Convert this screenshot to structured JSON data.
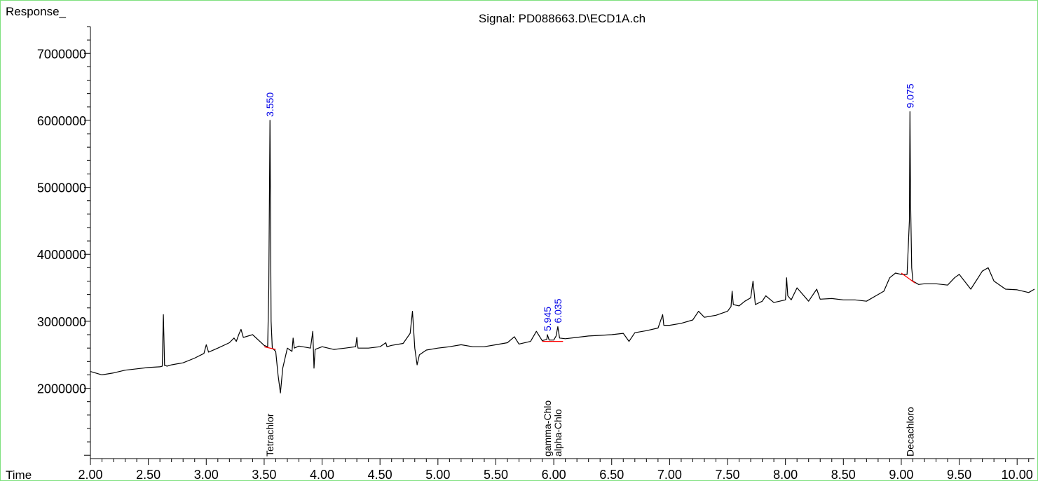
{
  "header": {
    "ylabel": "Response_",
    "title": "Signal: PD088663.D\\ECD1A.ch",
    "xlabel": "Time"
  },
  "colors": {
    "trace": "#000000",
    "baseline": "#ff0000",
    "retention_label": "#0000e6",
    "axis_title": "#0000e6",
    "frame": "#7ee07e"
  },
  "chart_data": {
    "type": "line",
    "title": "Signal: PD088663.D\\ECD1A.ch",
    "xlabel": "Time",
    "ylabel": "Response_",
    "xlim": [
      2.0,
      10.15
    ],
    "ylim": [
      950000,
      7400000
    ],
    "x_ticks": [
      2.0,
      2.5,
      3.0,
      3.5,
      4.0,
      4.5,
      5.0,
      5.5,
      6.0,
      6.5,
      7.0,
      7.5,
      8.0,
      8.5,
      9.0,
      9.5,
      10.0
    ],
    "x_tick_labels": [
      "2.00",
      "2.50",
      "3.00",
      "3.50",
      "4.00",
      "4.50",
      "5.00",
      "5.50",
      "6.00",
      "6.50",
      "7.00",
      "7.50",
      "8.00",
      "8.50",
      "9.00",
      "9.50",
      "10.00"
    ],
    "y_ticks": [
      2000000,
      3000000,
      4000000,
      5000000,
      6000000,
      7000000
    ],
    "y_tick_labels": [
      "2000000",
      "3000000",
      "4000000",
      "5000000",
      "6000000",
      "7000000"
    ],
    "series": [
      {
        "x": [
          2.0,
          2.1,
          2.2,
          2.3,
          2.4,
          2.5,
          2.6,
          2.62,
          2.63,
          2.64,
          2.65,
          2.66,
          2.7,
          2.8,
          2.9,
          2.98,
          3.0,
          3.02,
          3.1,
          3.2,
          3.24,
          3.26,
          3.28,
          3.3,
          3.32,
          3.4,
          3.5,
          3.53,
          3.54,
          3.55,
          3.56,
          3.57,
          3.6,
          3.62,
          3.64,
          3.66,
          3.7,
          3.74,
          3.75,
          3.76,
          3.8,
          3.9,
          3.92,
          3.93,
          3.94,
          4.0,
          4.1,
          4.2,
          4.29,
          4.3,
          4.31,
          4.4,
          4.5,
          4.55,
          4.56,
          4.6,
          4.7,
          4.76,
          4.78,
          4.8,
          4.82,
          4.84,
          4.9,
          5.0,
          5.1,
          5.2,
          5.3,
          5.4,
          5.5,
          5.6,
          5.66,
          5.7,
          5.8,
          5.85,
          5.9,
          5.94,
          5.945,
          5.96,
          6.0,
          6.02,
          6.035,
          6.05,
          6.1,
          6.2,
          6.3,
          6.4,
          6.5,
          6.6,
          6.65,
          6.7,
          6.8,
          6.9,
          6.94,
          6.95,
          7.0,
          7.1,
          7.2,
          7.25,
          7.3,
          7.4,
          7.5,
          7.53,
          7.54,
          7.55,
          7.6,
          7.65,
          7.7,
          7.72,
          7.74,
          7.8,
          7.83,
          7.9,
          7.95,
          8.0,
          8.01,
          8.02,
          8.05,
          8.1,
          8.2,
          8.27,
          8.3,
          8.4,
          8.5,
          8.6,
          8.7,
          8.8,
          8.85,
          8.9,
          8.95,
          9.0,
          9.05,
          9.07,
          9.075,
          9.08,
          9.09,
          9.1,
          9.15,
          9.2,
          9.3,
          9.4,
          9.46,
          9.5,
          9.6,
          9.7,
          9.75,
          9.8,
          9.9,
          10.0,
          10.1,
          10.15
        ],
        "y": [
          2250000,
          2200000,
          2230000,
          2270000,
          2290000,
          2310000,
          2320000,
          2330000,
          3100000,
          2340000,
          2340000,
          2330000,
          2350000,
          2380000,
          2450000,
          2520000,
          2650000,
          2540000,
          2600000,
          2680000,
          2750000,
          2700000,
          2800000,
          2880000,
          2760000,
          2800000,
          2640000,
          2620000,
          3500000,
          6000000,
          3000000,
          2600000,
          2550000,
          2200000,
          1930000,
          2300000,
          2600000,
          2550000,
          2750000,
          2600000,
          2630000,
          2600000,
          2850000,
          2300000,
          2580000,
          2620000,
          2580000,
          2600000,
          2620000,
          2760000,
          2600000,
          2600000,
          2620000,
          2680000,
          2620000,
          2640000,
          2670000,
          2820000,
          3150000,
          2600000,
          2350000,
          2500000,
          2570000,
          2600000,
          2620000,
          2650000,
          2620000,
          2620000,
          2650000,
          2680000,
          2770000,
          2660000,
          2700000,
          2850000,
          2710000,
          2730000,
          2800000,
          2720000,
          2720000,
          2780000,
          2920000,
          2750000,
          2740000,
          2760000,
          2780000,
          2790000,
          2800000,
          2820000,
          2700000,
          2830000,
          2860000,
          2900000,
          3100000,
          2940000,
          2940000,
          2970000,
          3020000,
          3150000,
          3060000,
          3090000,
          3150000,
          3220000,
          3450000,
          3250000,
          3230000,
          3300000,
          3350000,
          3600000,
          3250000,
          3300000,
          3380000,
          3280000,
          3300000,
          3320000,
          3650000,
          3380000,
          3320000,
          3500000,
          3300000,
          3480000,
          3330000,
          3340000,
          3320000,
          3320000,
          3300000,
          3400000,
          3450000,
          3650000,
          3720000,
          3700000,
          3700000,
          4500000,
          6130000,
          4800000,
          3800000,
          3600000,
          3550000,
          3560000,
          3560000,
          3540000,
          3650000,
          3700000,
          3480000,
          3750000,
          3800000,
          3600000,
          3480000,
          3470000,
          3430000,
          3480000
        ]
      }
    ],
    "peaks": [
      {
        "rt": "3.550",
        "x": 3.55,
        "y": 6000000,
        "compound": "Tetrachlor",
        "baseline": [
          [
            3.5,
            2620000
          ],
          [
            3.6,
            2580000
          ]
        ]
      },
      {
        "rt": "5.945",
        "x": 5.945,
        "y": 2800000,
        "compound": "gamma-Chlo",
        "baseline": [
          [
            5.9,
            2700000
          ],
          [
            5.99,
            2700000
          ]
        ]
      },
      {
        "rt": "6.035",
        "x": 6.035,
        "y": 2920000,
        "compound": "alpha-Chlo",
        "baseline": [
          [
            5.99,
            2700000
          ],
          [
            6.08,
            2700000
          ]
        ]
      },
      {
        "rt": "9.075",
        "x": 9.075,
        "y": 6130000,
        "compound": "Decachloro",
        "baseline": [
          [
            9.0,
            3720000
          ],
          [
            9.12,
            3570000
          ]
        ]
      }
    ]
  }
}
